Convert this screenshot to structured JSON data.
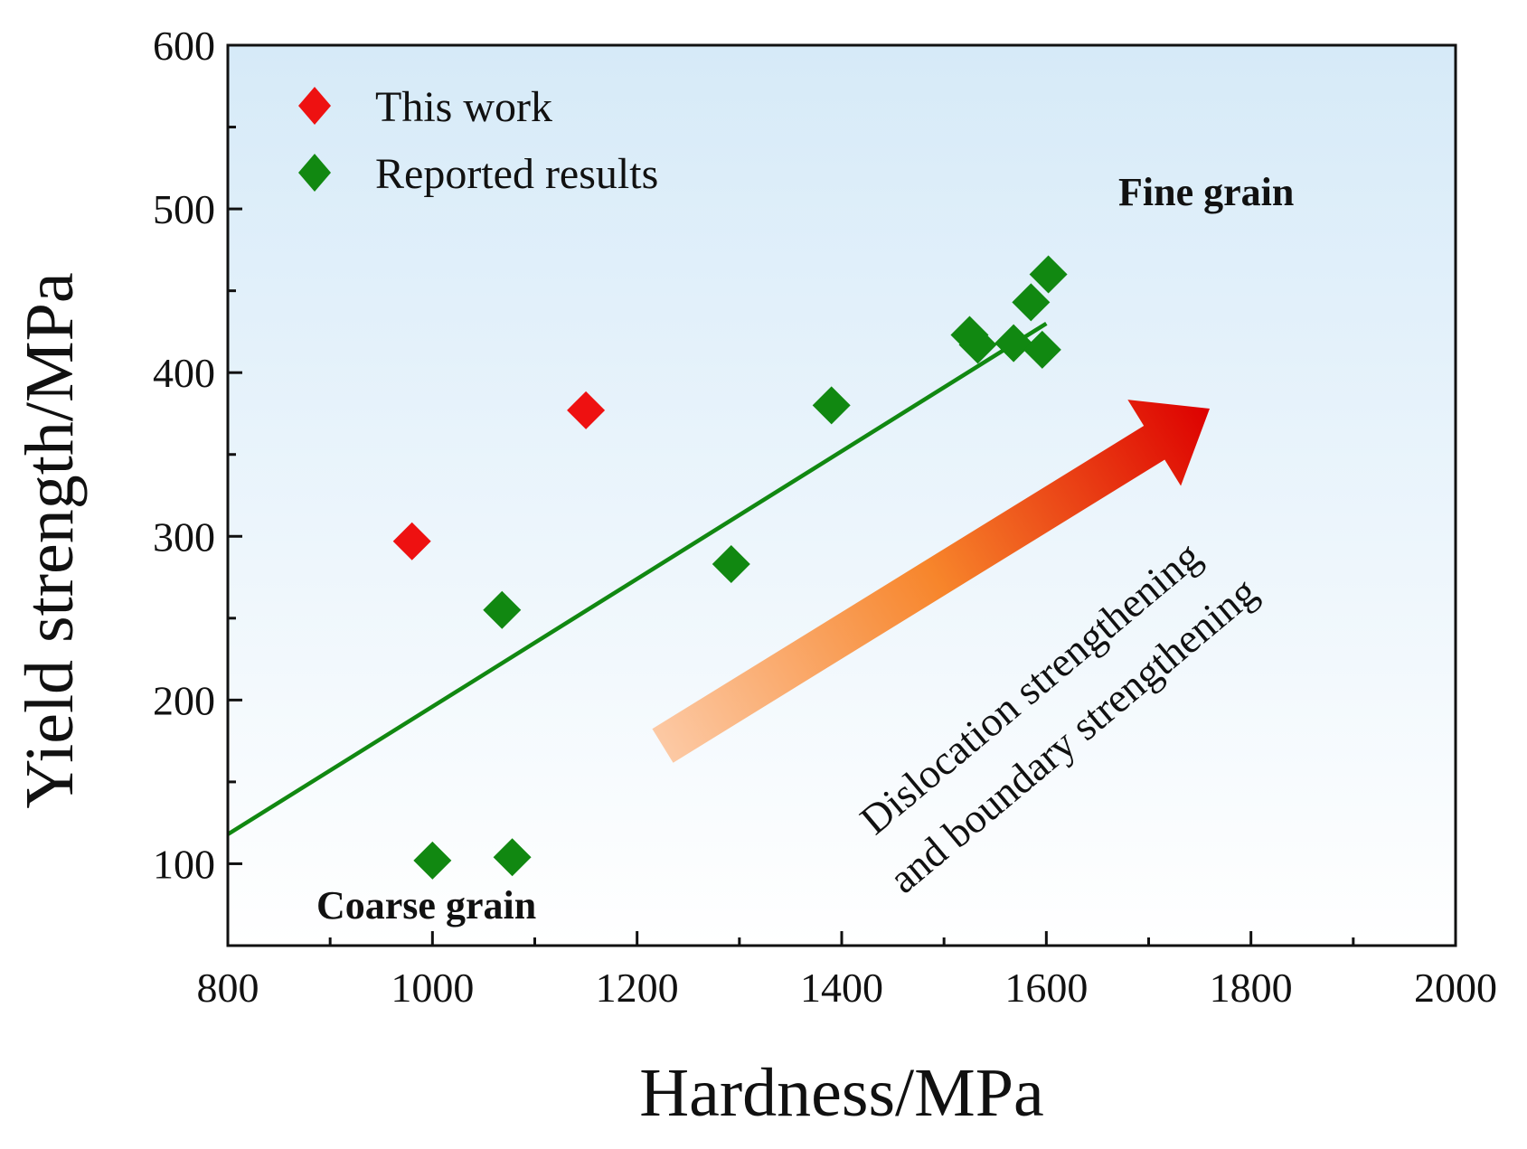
{
  "chart_data": {
    "type": "scatter",
    "xlabel": "Hardness/MPa",
    "ylabel": "Yield strength/MPa",
    "xlim": [
      800,
      2000
    ],
    "ylim": [
      50,
      600
    ],
    "xticks": [
      800,
      1000,
      1200,
      1400,
      1600,
      1800,
      2000
    ],
    "yticks": [
      100,
      200,
      300,
      400,
      500,
      600
    ],
    "grid": false,
    "legend_position": "top-left",
    "series": [
      {
        "name": "This work",
        "color": "#ee1111",
        "marker": "diamond",
        "points": [
          [
            980,
            297
          ],
          [
            1150,
            377
          ]
        ]
      },
      {
        "name": "Reported results",
        "color": "#118811",
        "marker": "diamond",
        "points": [
          [
            1000,
            102
          ],
          [
            1078,
            104
          ],
          [
            1068,
            255
          ],
          [
            1292,
            283
          ],
          [
            1390,
            380
          ],
          [
            1525,
            423
          ],
          [
            1533,
            417
          ],
          [
            1568,
            418
          ],
          [
            1585,
            443
          ],
          [
            1596,
            414
          ],
          [
            1602,
            460
          ]
        ]
      }
    ],
    "fit_line": {
      "color": "#118811",
      "x": [
        800,
        1600
      ],
      "y": [
        118,
        430
      ]
    },
    "annotations": {
      "fine_grain": "Fine grain",
      "coarse_grain": "Coarse grain",
      "arrow_line1": "Dislocation strengthening",
      "arrow_line2": "and boundary strengthening"
    }
  }
}
